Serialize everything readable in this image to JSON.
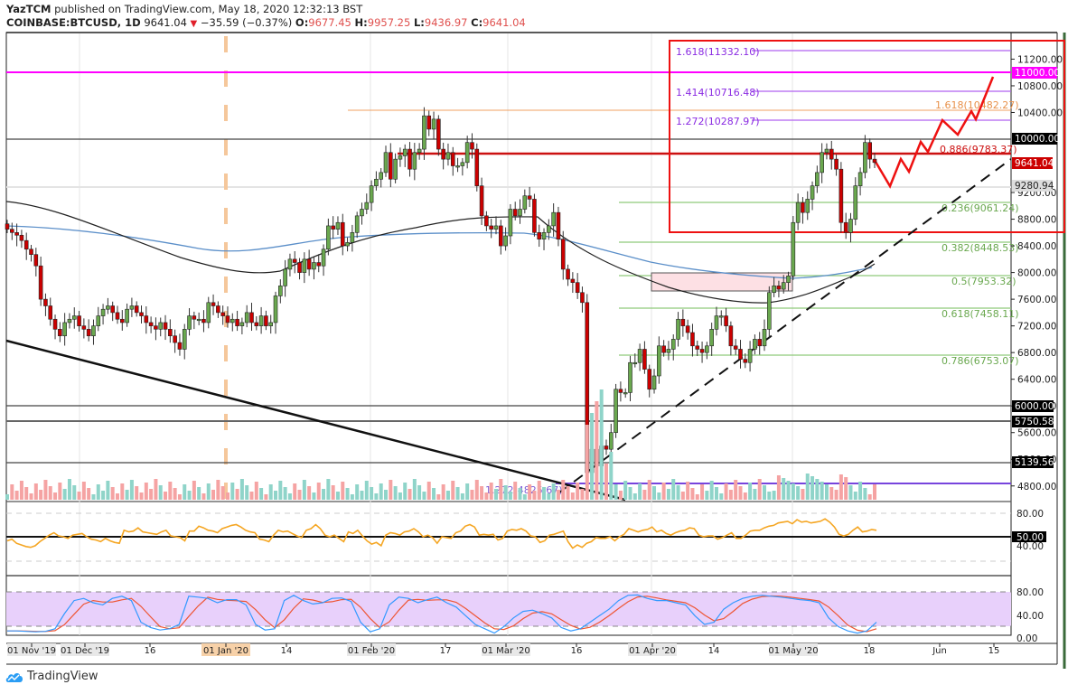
{
  "header": {
    "author": "YazTCM",
    "published_text": "published on TradingView.com, May 18, 2020 12:32:13 BST",
    "symbol": "COINBASE:BTCUSD, 1D",
    "last": "9641.04",
    "change": "−35.59 (−0.37%)",
    "open_label": "O:",
    "open": "9677.45",
    "high_label": "H:",
    "high": "9957.25",
    "low_label": "L:",
    "low": "9436.97",
    "close_label": "C:",
    "close": "9641.04"
  },
  "footer": {
    "brand": "TradingView"
  },
  "colors": {
    "up": "#6aa84f",
    "down": "#cc0000",
    "fib_green": "#6aa84f",
    "fib_purple": "#9b30ff",
    "magenta": "#ff00ff",
    "orange_fib": "#f0a060",
    "red_box": "#ee1111",
    "rsi": "#f5a623",
    "stoch_k": "#3399ff",
    "stoch_d": "#ee5533"
  },
  "chart_data": {
    "type": "candlestick",
    "title": "COINBASE:BTCUSD, 1D",
    "price_axis": {
      "ticks": [
        "11200.00",
        "10800.00",
        "10400.00",
        "10000.00",
        "9600.00",
        "9200.00",
        "8800.00",
        "8400.00",
        "8000.00",
        "7600.00",
        "7200.00",
        "6800.00",
        "6400.00",
        "6000.00",
        "5600.00",
        "5200.00",
        "4800.00"
      ],
      "labels": [
        {
          "value": "11000.00",
          "style": "magenta"
        },
        {
          "value": "10000.00",
          "style": "black"
        },
        {
          "value": "9641.04",
          "style": "red"
        },
        {
          "value": "9280.94",
          "style": "grey"
        },
        {
          "value": "6000.00",
          "style": "black"
        },
        {
          "value": "5750.58",
          "style": "black"
        },
        {
          "value": "5139.56",
          "style": "black"
        }
      ],
      "range": [
        4600,
        11450
      ]
    },
    "time_axis": [
      "01 Nov '19",
      "01 Dec '19",
      "16",
      "01 Jan '20",
      "14",
      "01 Feb '20",
      "17",
      "01 Mar '20",
      "16",
      "01 Apr '20",
      "14",
      "01 May '20",
      "18",
      "Jun",
      "15"
    ],
    "fib_levels_green": [
      {
        "label": "0.236(9061.24)",
        "value": 9061.24
      },
      {
        "label": "0.382(8448.53)",
        "value": 8448.53
      },
      {
        "label": "0.5(7953.32)",
        "value": 7953.32
      },
      {
        "label": "0.618(7458.11)",
        "value": 7458.11
      },
      {
        "label": "0.786(6753.07)",
        "value": 6753.07
      }
    ],
    "fib_levels_purple": [
      {
        "label": "1.618(11332.10)",
        "value": 11332.1
      },
      {
        "label": "1.414(10716.48)",
        "value": 10716.48
      },
      {
        "label": "1.272(10287.97)",
        "value": 10287.97
      },
      {
        "label": "1.272(4825.67)",
        "value": 4825.67
      }
    ],
    "fib_levels_other": [
      {
        "label": "1.618(10482.27)",
        "value": 10482.27,
        "color": "orange"
      },
      {
        "label": "0.886(9783.37)",
        "value": 9783.37,
        "color": "red"
      }
    ],
    "horizontal_levels": [
      11000,
      10000,
      6000,
      5750.58,
      5139.56
    ],
    "rsi": {
      "ticks": [
        "80.00",
        "50.00",
        "40.00"
      ],
      "current_label": "50.00"
    },
    "stoch_rsi": {
      "ticks": [
        "80.00",
        "40.00",
        "0.00"
      ]
    },
    "ohlc_last": {
      "open": 9677.45,
      "high": 9957.25,
      "low": 9436.97,
      "close": 9641.04,
      "change": -35.59,
      "change_pct": -0.37
    }
  }
}
